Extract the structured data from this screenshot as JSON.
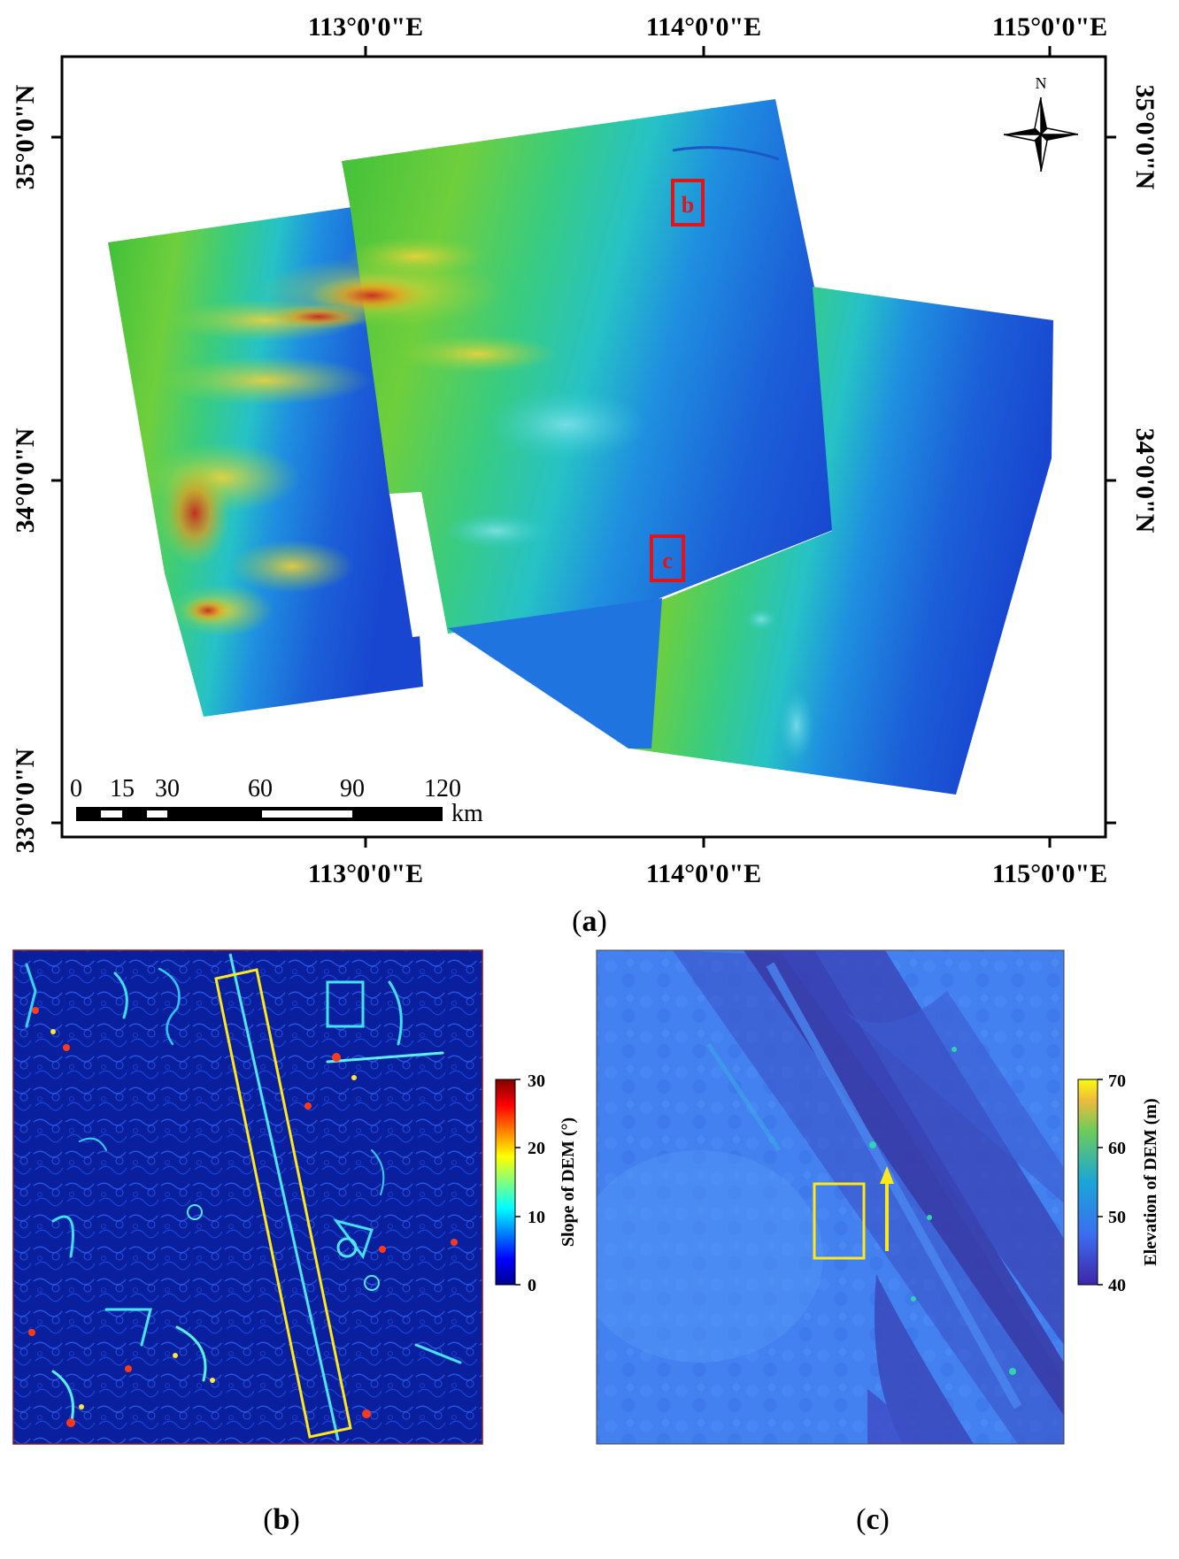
{
  "panel_a": {
    "caption_letter": "a",
    "lon_labels": [
      "113°0'0\"E",
      "114°0'0\"E",
      "115°0'0\"E"
    ],
    "lat_labels": [
      "35°0'0\"N",
      "34°0'0\"N",
      "33°0'0\"N"
    ],
    "north_label": "N",
    "scale_bar": {
      "ticks": [
        "0",
        "15",
        "30",
        "60",
        "90",
        "120"
      ],
      "unit": "km"
    },
    "boxes": [
      "b",
      "c"
    ],
    "colors": {
      "high": "#c8281e",
      "mid": "#2ed17a",
      "low": "#1f4fd6",
      "box": "#e0151b"
    }
  },
  "panel_b": {
    "caption_letter": "b",
    "colorbar": {
      "title": "Slope of DEM (°)",
      "ticks": [
        "30",
        "20",
        "10",
        "0"
      ],
      "range": [
        0,
        30
      ]
    },
    "colors": {
      "background": "#0a1f9e",
      "highlight_box": "#ffe81a"
    }
  },
  "panel_c": {
    "caption_letter": "c",
    "colorbar": {
      "title": "Elevation of DEM (m)",
      "ticks": [
        "70",
        "60",
        "50",
        "40"
      ],
      "range": [
        40,
        70
      ]
    },
    "colors": {
      "background": "#3f7cf0",
      "channel": "#3b3aa8",
      "highlight_box": "#ffe81a",
      "arrow": "#ffe81a"
    }
  }
}
